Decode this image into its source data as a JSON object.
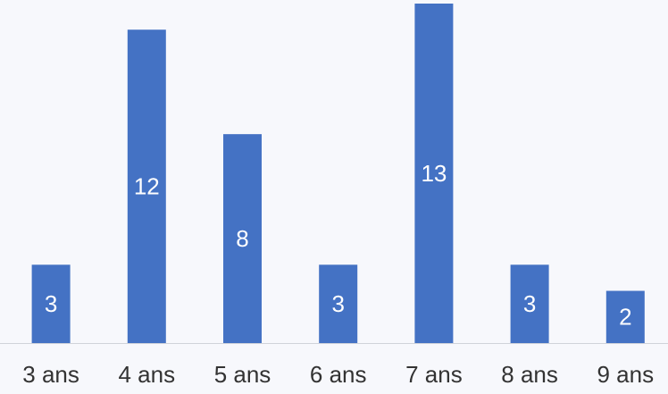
{
  "chart_data": {
    "type": "bar",
    "categories": [
      "3 ans",
      "4 ans",
      "5 ans",
      "6 ans",
      "7 ans",
      "8 ans",
      "9 ans"
    ],
    "values": [
      3,
      12,
      8,
      3,
      13,
      3,
      2
    ],
    "color": "#4472c4",
    "ylim": [
      0,
      13
    ]
  }
}
